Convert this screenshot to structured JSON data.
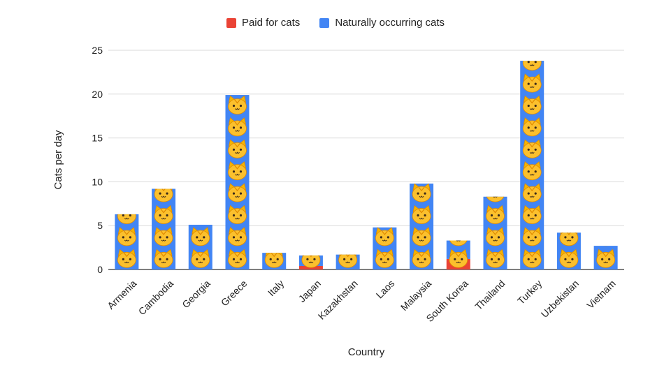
{
  "chart_data": {
    "type": "bar",
    "stacked": true,
    "title": "",
    "xlabel": "Country",
    "ylabel": "Cats per day",
    "ylim": [
      0,
      25
    ],
    "yticks": [
      0,
      5,
      10,
      15,
      20,
      25
    ],
    "grid": true,
    "legend_position": "top",
    "categories": [
      "Armenia",
      "Cambodia",
      "Georgia",
      "Greece",
      "Italy",
      "Japan",
      "Kazakhstan",
      "Laos",
      "Malaysia",
      "South Korea",
      "Thailand",
      "Turkey",
      "Uzbekistan",
      "Vietnam"
    ],
    "series": [
      {
        "name": "Paid for cats",
        "color": "#ea4335",
        "values": [
          0,
          0,
          0,
          0,
          0,
          0.4,
          0,
          0,
          0,
          1.2,
          0,
          0,
          0,
          0
        ]
      },
      {
        "name": "Naturally occurring cats",
        "color": "#4285f4",
        "values": [
          6.3,
          9.2,
          5.1,
          19.9,
          1.9,
          1.2,
          1.7,
          4.8,
          9.8,
          2.1,
          8.3,
          23.8,
          4.2,
          2.7
        ]
      }
    ]
  }
}
